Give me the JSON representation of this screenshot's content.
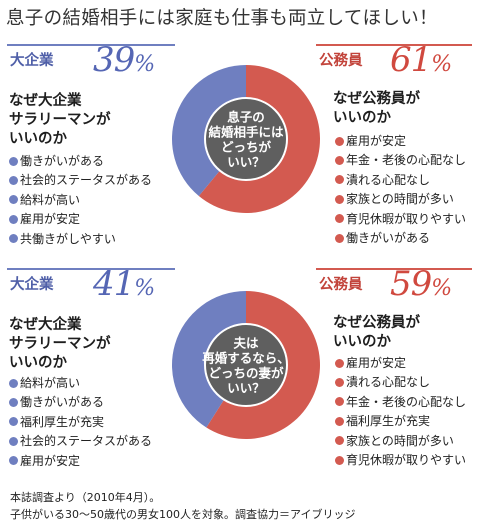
{
  "title": "息子の結婚相手には家庭も仕事も両立してほしい！",
  "colors": {
    "large_company": "#6f7fc0",
    "civil_servant": "#d35a50",
    "center": "#5f5f5f"
  },
  "chart_data": [
    {
      "type": "pie",
      "center_label": [
        "息子の",
        "結婚相手には",
        "どっちが",
        "いい？"
      ],
      "slices": [
        {
          "label": "大企業",
          "value": 39,
          "pct_text": "39",
          "color": "#6f7fc0"
        },
        {
          "label": "公務員",
          "value": 61,
          "pct_text": "61",
          "color": "#d35a50"
        }
      ],
      "left": {
        "question": [
          "なぜ大企業",
          "サラリーマンが",
          "いいのか"
        ],
        "reasons": [
          "働きがいがある",
          "社会的ステータスがある",
          "給料が高い",
          "雇用が安定",
          "共働きがしやすい"
        ]
      },
      "right": {
        "question": [
          "なぜ公務員が",
          "いいのか"
        ],
        "reasons": [
          "雇用が安定",
          "年金・老後の心配なし",
          "潰れる心配なし",
          "家族との時間が多い",
          "育児休暇が取りやすい",
          "働きがいがある"
        ]
      }
    },
    {
      "type": "pie",
      "center_label": [
        "夫は",
        "再婚するなら、",
        "どっちの妻が",
        "いい？"
      ],
      "slices": [
        {
          "label": "大企業",
          "value": 41,
          "pct_text": "41",
          "color": "#6f7fc0"
        },
        {
          "label": "公務員",
          "value": 59,
          "pct_text": "59",
          "color": "#d35a50"
        }
      ],
      "left": {
        "question": [
          "なぜ大企業",
          "サラリーマンが",
          "いいのか"
        ],
        "reasons": [
          "給料が高い",
          "働きがいがある",
          "福利厚生が充実",
          "社会的ステータスがある",
          "雇用が安定"
        ]
      },
      "right": {
        "question": [
          "なぜ公務員が",
          "いいのか"
        ],
        "reasons": [
          "雇用が安定",
          "潰れる心配なし",
          "年金・老後の心配なし",
          "福利厚生が充実",
          "家族との時間が多い",
          "育児休暇が取りやすい"
        ]
      }
    }
  ],
  "footnote": [
    "本誌調査より（2010年4月）。",
    "子供がいる30〜50歳代の男女100人を対象。調査協力＝アイブリッジ"
  ]
}
